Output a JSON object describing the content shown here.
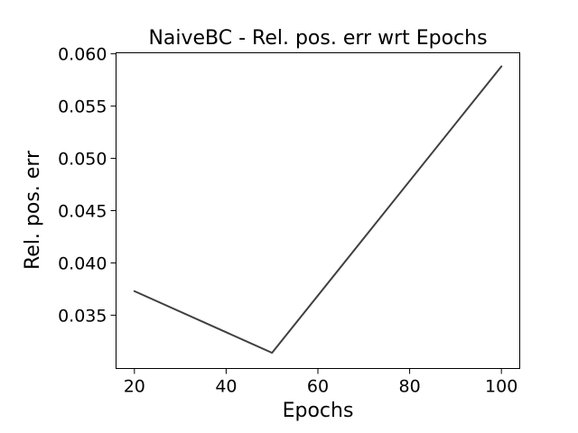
{
  "chart_data": {
    "type": "line",
    "title": "NaiveBC - Rel. pos. err wrt Epochs",
    "xlabel": "Epochs",
    "ylabel": "Rel. pos. err",
    "x": [
      20,
      50,
      100
    ],
    "series": [
      {
        "values": [
          0.0373,
          0.0314,
          0.0588
        ],
        "color": "#404040"
      }
    ],
    "xlim": [
      16,
      104
    ],
    "ylim": [
      0.0299,
      0.0601
    ],
    "xticks": [
      20,
      40,
      60,
      80,
      100
    ],
    "xtick_labels": [
      "20",
      "40",
      "60",
      "80",
      "100"
    ],
    "yticks": [
      0.035,
      0.04,
      0.045,
      0.05,
      0.055,
      0.06
    ],
    "ytick_labels": [
      "0.035",
      "0.040",
      "0.045",
      "0.050",
      "0.055",
      "0.060"
    ],
    "grid": false,
    "legend": false
  }
}
